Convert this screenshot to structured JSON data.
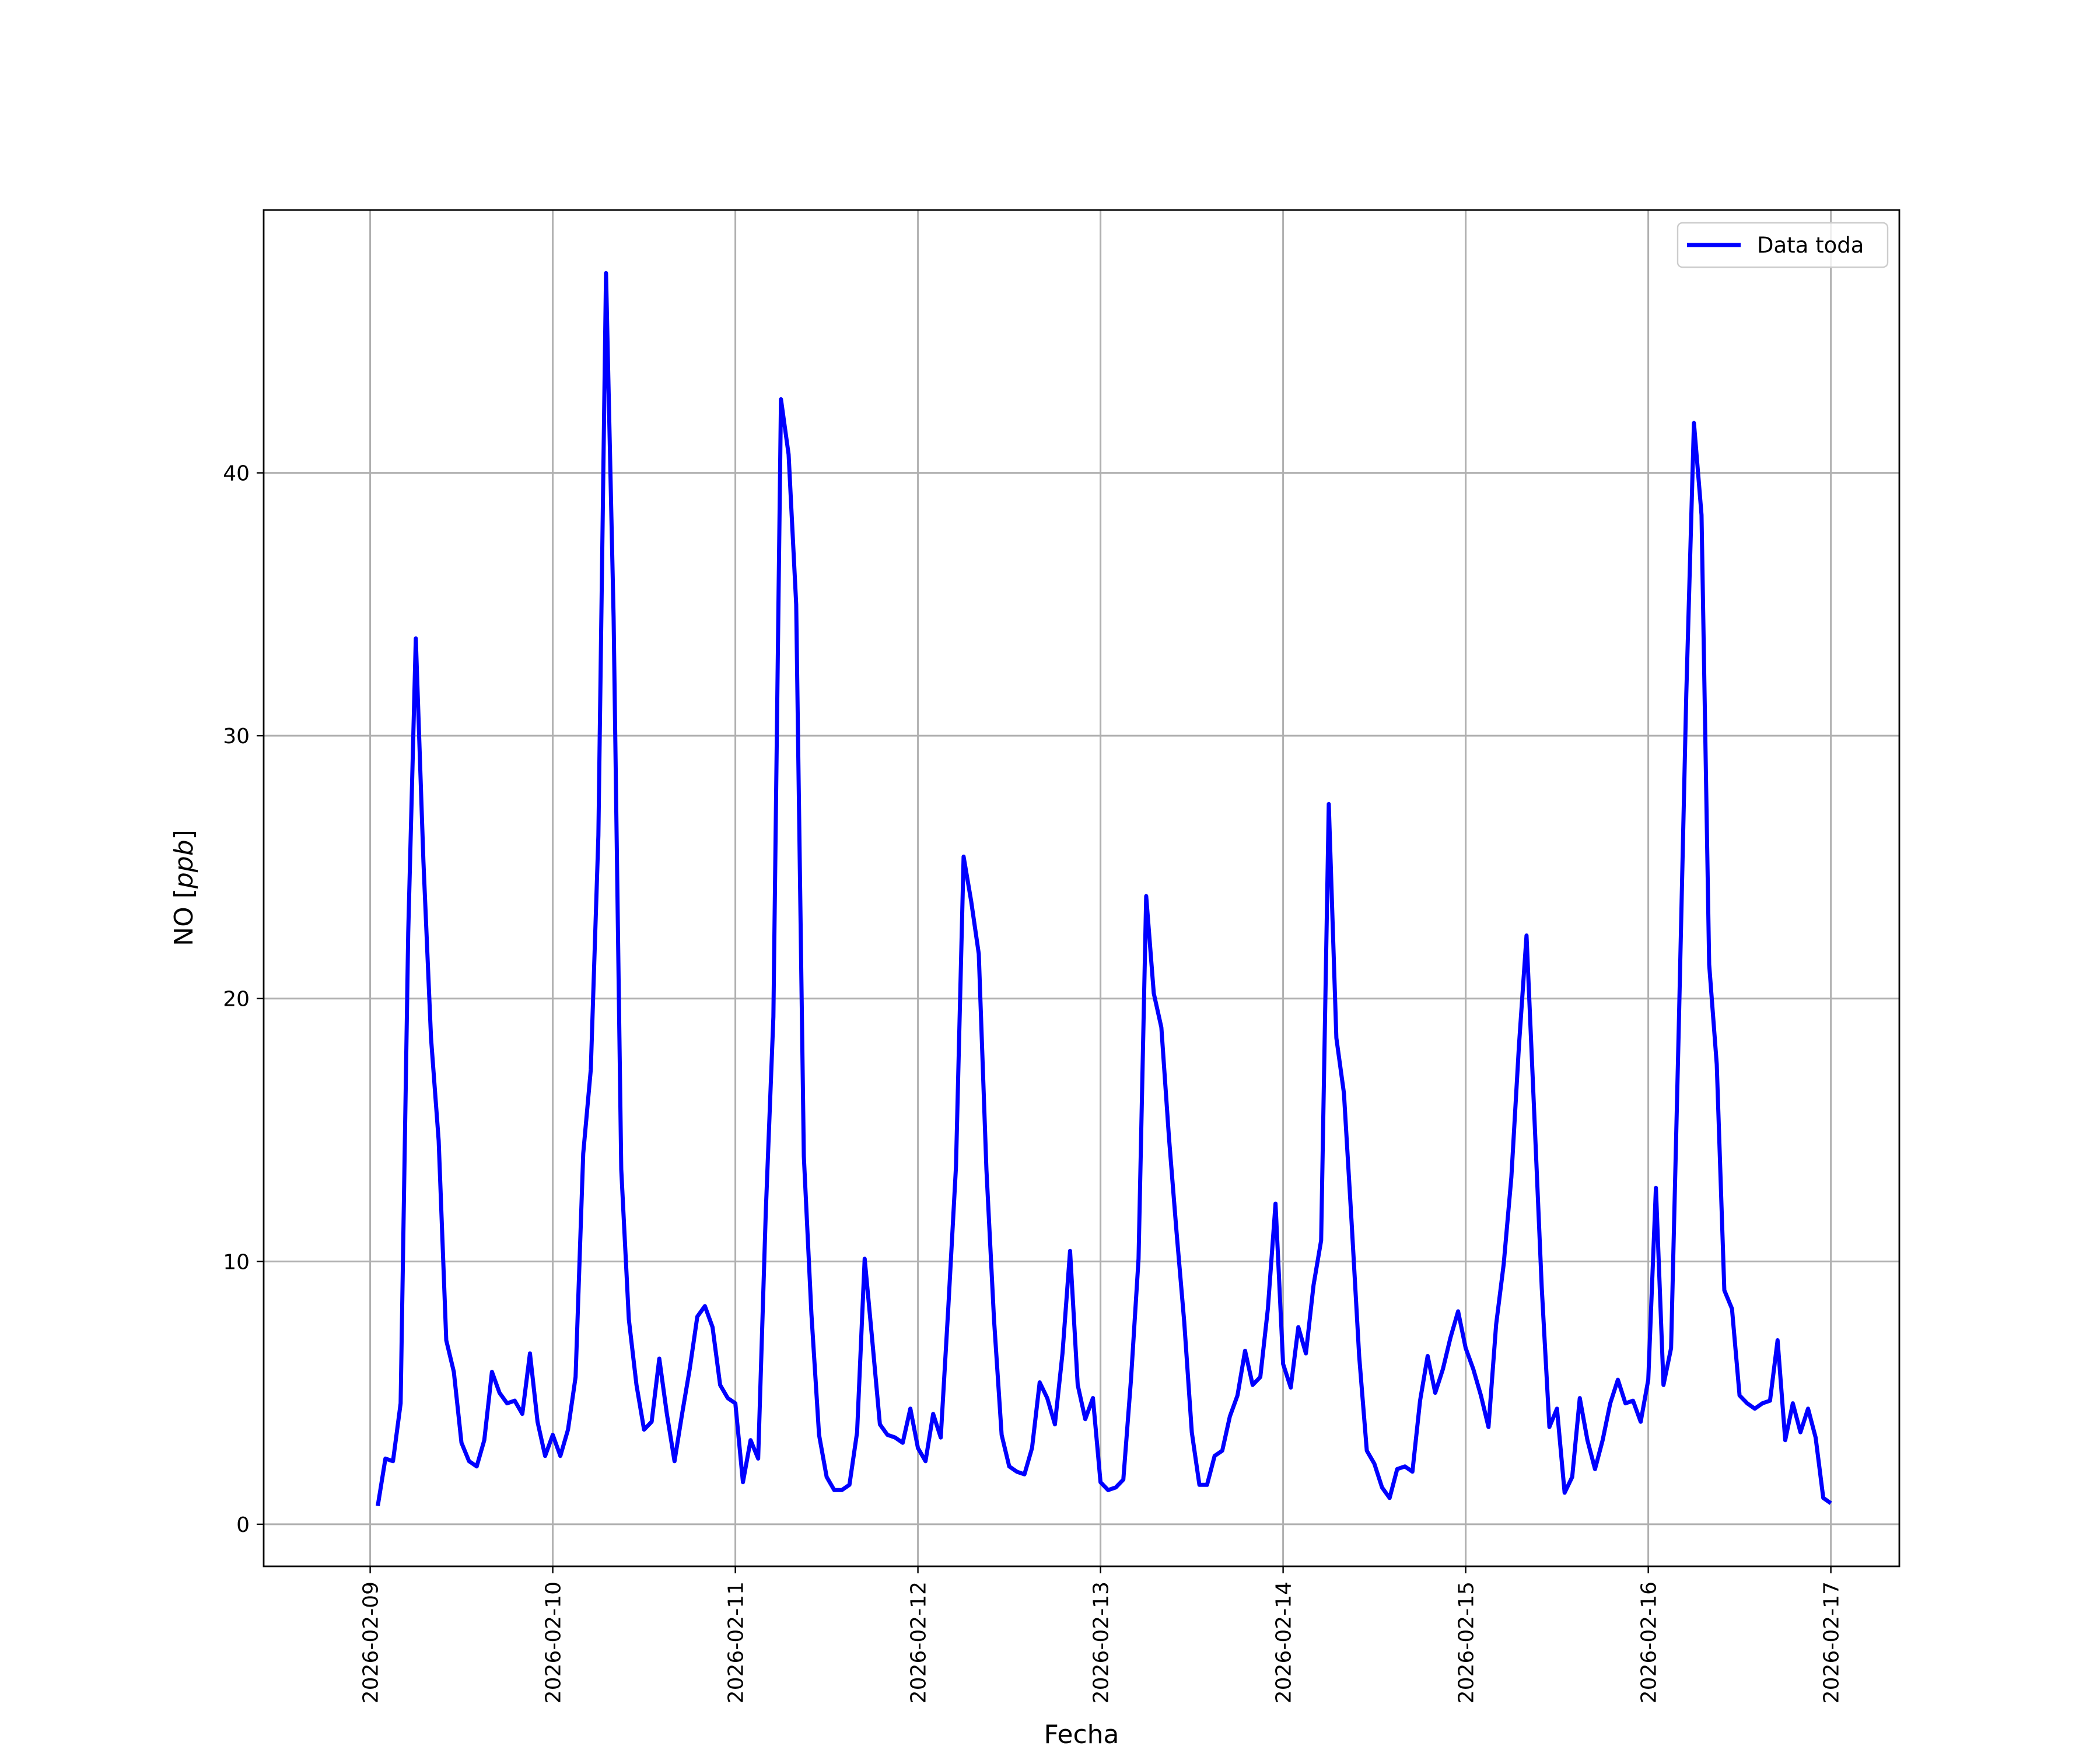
{
  "chart_data": {
    "type": "line",
    "title": "",
    "xlabel": "Fecha",
    "ylabel_prefix": "NO [",
    "ylabel_unit": "ppb",
    "ylabel_suffix": "]",
    "x_ticks": [
      "2026-02-09",
      "2026-02-10",
      "2026-02-11",
      "2026-02-12",
      "2026-02-13",
      "2026-02-14",
      "2026-02-15",
      "2026-02-16",
      "2026-02-17"
    ],
    "y_ticks": [
      0,
      10,
      20,
      30,
      40
    ],
    "xlim": [
      "2026-02-08 10:00",
      "2026-02-17 09:00"
    ],
    "ylim": [
      -1.6,
      50.0
    ],
    "grid": true,
    "legend_position": "upper right",
    "colors": {
      "series": "#0000ff",
      "grid": "#b0b0b0",
      "frame": "#000000"
    },
    "series": [
      {
        "name": "Data toda",
        "start": "2026-02-09 01:00",
        "step_hours": 1,
        "y": [
          0.7,
          2.5,
          2.4,
          4.6,
          22.5,
          33.7,
          25.2,
          18.5,
          14.6,
          7.0,
          5.8,
          3.1,
          2.4,
          2.2,
          3.2,
          5.8,
          5.0,
          4.6,
          4.7,
          4.2,
          6.5,
          3.9,
          2.6,
          3.4,
          2.6,
          3.6,
          5.6,
          14.1,
          17.3,
          26.2,
          47.6,
          34.5,
          13.5,
          7.8,
          5.3,
          3.6,
          3.9,
          6.3,
          4.2,
          2.4,
          4.2,
          5.9,
          7.9,
          8.3,
          7.5,
          5.3,
          4.8,
          4.6,
          1.6,
          3.2,
          2.5,
          11.9,
          19.3,
          42.8,
          40.7,
          35.0,
          14.0,
          8.0,
          3.4,
          1.8,
          1.3,
          1.3,
          1.5,
          3.5,
          10.1,
          7.0,
          3.8,
          3.4,
          3.3,
          3.1,
          4.4,
          2.9,
          2.4,
          4.2,
          3.3,
          8.3,
          13.6,
          25.4,
          23.7,
          21.7,
          13.5,
          7.8,
          3.4,
          2.2,
          2.0,
          1.9,
          2.9,
          5.4,
          4.8,
          3.8,
          6.5,
          10.4,
          5.3,
          4.0,
          4.8,
          1.6,
          1.3,
          1.4,
          1.7,
          5.5,
          10.1,
          23.9,
          20.2,
          18.9,
          14.7,
          11.1,
          7.7,
          3.5,
          1.5,
          1.5,
          2.6,
          2.8,
          4.1,
          4.9,
          6.6,
          5.3,
          5.6,
          8.2,
          12.2,
          6.1,
          5.2,
          7.5,
          6.5,
          9.1,
          10.8,
          27.4,
          18.5,
          16.4,
          11.5,
          6.4,
          2.8,
          2.3,
          1.4,
          1.0,
          2.1,
          2.2,
          2.0,
          4.7,
          6.4,
          5.0,
          5.9,
          7.1,
          8.1,
          6.7,
          5.9,
          4.9,
          3.7,
          7.6,
          9.9,
          13.2,
          18.2,
          22.4,
          15.7,
          9.0,
          3.7,
          4.4,
          1.2,
          1.8,
          4.8,
          3.2,
          2.1,
          3.2,
          4.6,
          5.5,
          4.6,
          4.7,
          3.9,
          5.5,
          12.8,
          5.3,
          6.7,
          18.8,
          31.6,
          41.9,
          38.4,
          21.3,
          17.5,
          8.9,
          8.2,
          4.9,
          4.6,
          4.4,
          4.6,
          4.7,
          7.0,
          3.2,
          4.6,
          3.5,
          4.4,
          3.3,
          1.0,
          0.8
        ]
      }
    ]
  }
}
